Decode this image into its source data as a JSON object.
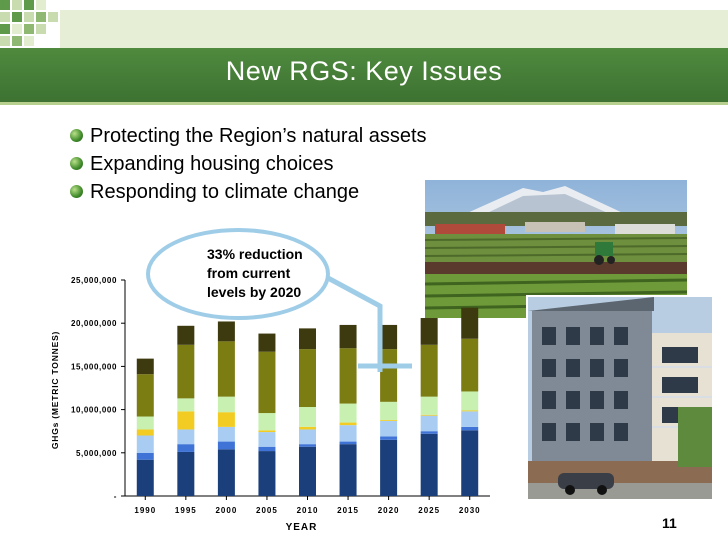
{
  "slide": {
    "title": "New RGS: Key Issues",
    "bullets": [
      "Protecting the Region’s natural assets",
      "Expanding housing choices",
      "Responding to climate change"
    ],
    "page_number": "11",
    "callout": [
      "33% reduction",
      "from current",
      "levels by 2020"
    ]
  },
  "colors": {
    "title_band": "#4a833a",
    "series": [
      "#1b3f7a",
      "#3f74d6",
      "#a9cdf2",
      "#f2cc22",
      "#c8f0b0",
      "#7b7c12",
      "#3d3a10"
    ]
  },
  "chart_data": {
    "type": "bar",
    "stacked": true,
    "categories": [
      "1990",
      "1995",
      "2000",
      "2005",
      "2010",
      "2015",
      "2020",
      "2025",
      "2030"
    ],
    "series": [
      {
        "values": [
          4200000,
          5100000,
          5400000,
          5200000,
          5700000,
          6000000,
          6500000,
          7200000,
          7600000
        ]
      },
      {
        "values": [
          800000,
          900000,
          900000,
          500000,
          300000,
          300000,
          400000,
          300000,
          400000
        ]
      },
      {
        "values": [
          2000000,
          1700000,
          1700000,
          1700000,
          1700000,
          1900000,
          1800000,
          1800000,
          1800000
        ]
      },
      {
        "values": [
          700000,
          2100000,
          1700000,
          200000,
          300000,
          300000,
          100000,
          100000,
          100000
        ]
      },
      {
        "values": [
          1500000,
          1500000,
          1800000,
          2000000,
          2300000,
          2200000,
          2100000,
          2100000,
          2200000
        ]
      },
      {
        "values": [
          4900000,
          6200000,
          6400000,
          7100000,
          6700000,
          6400000,
          6100000,
          6000000,
          6100000
        ]
      },
      {
        "values": [
          1800000,
          2200000,
          2300000,
          2100000,
          2400000,
          2700000,
          2800000,
          3100000,
          3600000
        ]
      }
    ],
    "xlabel": "YEAR",
    "ylabel": "GHGs (METRIC TONNES)",
    "yticks": [
      "-",
      "5,000,000",
      "10,000,000",
      "15,000,000",
      "20,000,000",
      "25,000,000"
    ],
    "ylim": [
      0,
      25000000
    ],
    "grid": false,
    "legend": "none"
  }
}
